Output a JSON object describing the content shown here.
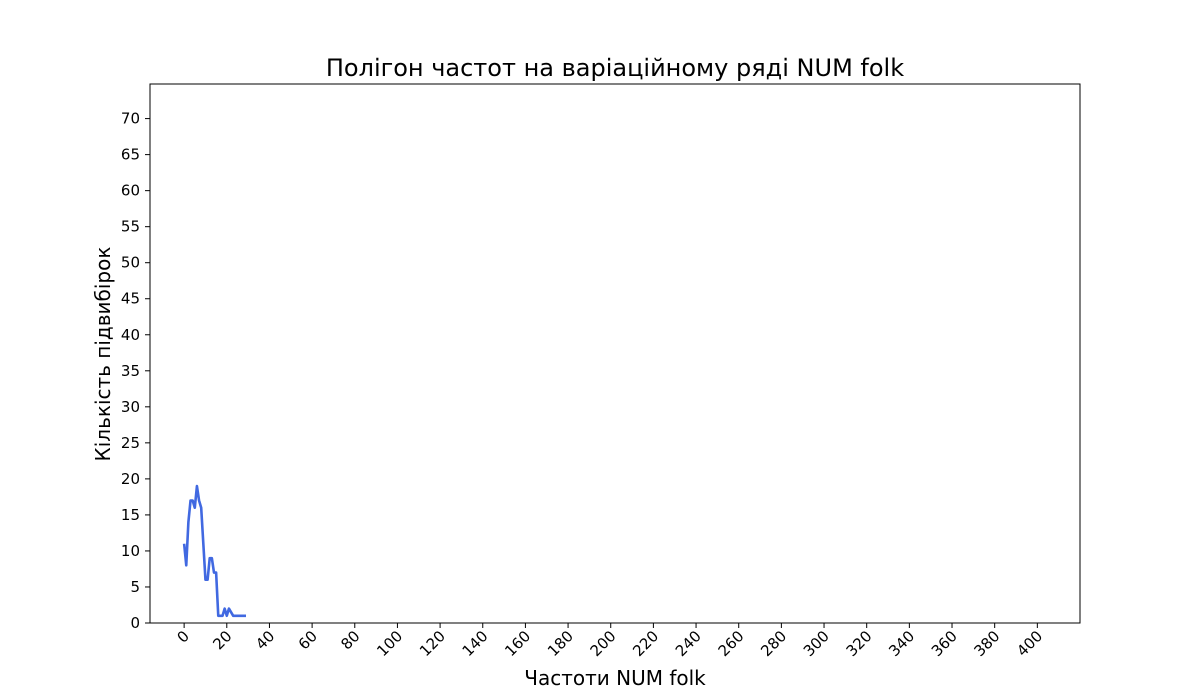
{
  "chart_data": {
    "type": "line",
    "title": "Полігон частот на варіаційному ряді NUM folk",
    "xlabel": "Частоти NUM folk",
    "ylabel": "Кількість підвибірок",
    "xlim": [
      -16,
      420
    ],
    "ylim": [
      0,
      74.8
    ],
    "x_ticks": [
      0,
      20,
      40,
      60,
      80,
      100,
      120,
      140,
      160,
      180,
      200,
      220,
      240,
      260,
      280,
      300,
      320,
      340,
      360,
      380,
      400
    ],
    "y_ticks": [
      0,
      5,
      10,
      15,
      20,
      25,
      30,
      35,
      40,
      45,
      50,
      55,
      60,
      65,
      70
    ],
    "x_tick_rotation": 45,
    "grid": false,
    "series": [
      {
        "color": "#4169e1",
        "x": [
          0,
          1,
          2,
          3,
          4,
          5,
          6,
          7,
          8,
          9,
          10,
          11,
          12,
          13,
          14,
          15,
          16,
          17,
          18,
          19,
          20,
          21,
          22,
          23,
          24,
          25,
          26,
          27,
          28,
          29
        ],
        "y": [
          11,
          8,
          14,
          17,
          17,
          16,
          19,
          17,
          16,
          11,
          6,
          6,
          9,
          9,
          7,
          7,
          1,
          1,
          1,
          2,
          1,
          2,
          1.5,
          1,
          1,
          1,
          1,
          1,
          1,
          1
        ]
      }
    ]
  }
}
